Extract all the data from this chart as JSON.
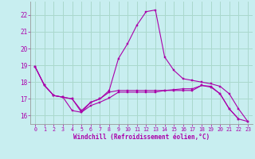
{
  "xlabel": "Windchill (Refroidissement éolien,°C)",
  "background_color": "#c8eef0",
  "grid_color": "#aad8cc",
  "line_color": "#aa00aa",
  "xlim": [
    -0.5,
    23.5
  ],
  "ylim": [
    15.5,
    22.8
  ],
  "yticks": [
    16,
    17,
    18,
    19,
    20,
    21,
    22
  ],
  "xticks": [
    0,
    1,
    2,
    3,
    4,
    5,
    6,
    7,
    8,
    9,
    10,
    11,
    12,
    13,
    14,
    15,
    16,
    17,
    18,
    19,
    20,
    21,
    22,
    23
  ],
  "series1_x": [
    0,
    1,
    2,
    3,
    4,
    5,
    6,
    7,
    8,
    9,
    10,
    11,
    12,
    13,
    14,
    15,
    16,
    17,
    18,
    19,
    20,
    21,
    22
  ],
  "series1_y": [
    18.9,
    17.8,
    17.2,
    17.1,
    17.0,
    16.3,
    16.8,
    17.0,
    17.4,
    17.5,
    17.5,
    17.5,
    17.5,
    17.5,
    17.5,
    17.55,
    17.6,
    17.6,
    17.8,
    17.75,
    17.3,
    16.4,
    15.8
  ],
  "series2_x": [
    0,
    1,
    2,
    3,
    4,
    5,
    6,
    7,
    8,
    9,
    10,
    11,
    12,
    13,
    14,
    15,
    16,
    17,
    18,
    19,
    20,
    21,
    22,
    23
  ],
  "series2_y": [
    18.9,
    17.8,
    17.2,
    17.1,
    16.3,
    16.2,
    16.8,
    17.0,
    17.5,
    19.4,
    20.3,
    21.4,
    22.2,
    22.3,
    19.5,
    18.7,
    18.2,
    18.1,
    18.0,
    17.9,
    17.75,
    17.3,
    16.4,
    15.65
  ],
  "series3_x": [
    0,
    1,
    2,
    3,
    4,
    5,
    6,
    7,
    8,
    9,
    10,
    11,
    12,
    13,
    14,
    15,
    16,
    17,
    18,
    19,
    20,
    21,
    22,
    23
  ],
  "series3_y": [
    18.9,
    17.8,
    17.2,
    17.1,
    17.0,
    16.2,
    16.6,
    16.8,
    17.05,
    17.4,
    17.4,
    17.4,
    17.4,
    17.4,
    17.5,
    17.5,
    17.5,
    17.5,
    17.8,
    17.7,
    17.3,
    16.4,
    15.8,
    15.65
  ]
}
